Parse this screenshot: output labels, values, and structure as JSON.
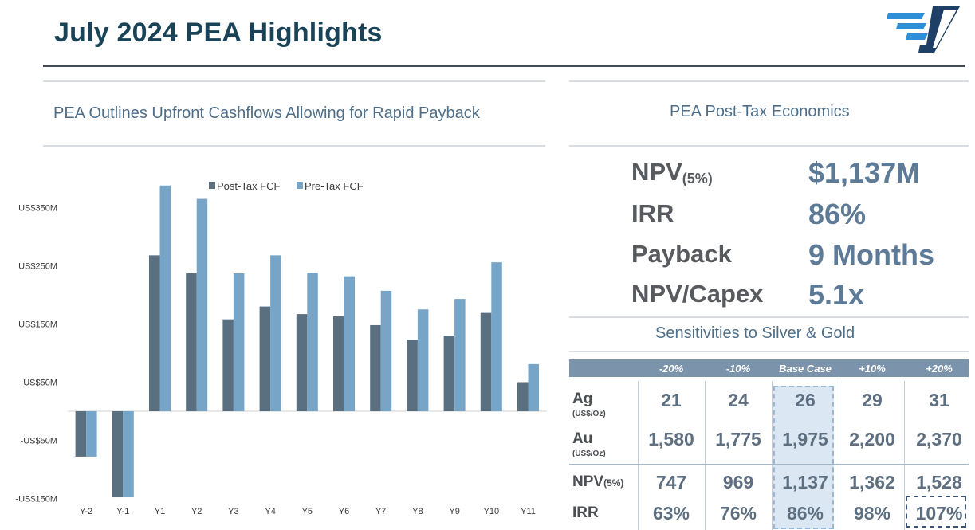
{
  "header": {
    "title": "July 2024 PEA Highlights"
  },
  "left_panel": {
    "heading": "PEA Outlines Upfront Cashflows Allowing for Rapid Payback"
  },
  "chart_data": {
    "type": "bar",
    "categories": [
      "Y-2",
      "Y-1",
      "Y1",
      "Y2",
      "Y3",
      "Y4",
      "Y5",
      "Y6",
      "Y7",
      "Y8",
      "Y9",
      "Y10",
      "Y11"
    ],
    "series": [
      {
        "name": "Post-Tax FCF",
        "color": "#5a7080",
        "values": [
          -78,
          -148,
          268,
          237,
          158,
          180,
          167,
          163,
          148,
          123,
          130,
          169,
          50
        ]
      },
      {
        "name": "Pre-Tax FCF",
        "color": "#76a5c8",
        "values": [
          -78,
          -148,
          388,
          365,
          237,
          268,
          238,
          232,
          207,
          175,
          193,
          256,
          81
        ]
      }
    ],
    "y_ticks": [
      {
        "value": 350,
        "label": "US$350M"
      },
      {
        "value": 250,
        "label": "US$250M"
      },
      {
        "value": 150,
        "label": "US$150M"
      },
      {
        "value": 50,
        "label": "US$50M"
      },
      {
        "value": -50,
        "label": "-US$50M"
      },
      {
        "value": -150,
        "label": "-US$150M"
      }
    ],
    "ylim": [
      -150,
      400
    ],
    "legend_position": "top-center"
  },
  "right_panel": {
    "heading": "PEA Post-Tax Economics",
    "metrics": [
      {
        "label": "NPV",
        "sub": "(5%)",
        "value": "$1,137M"
      },
      {
        "label": "IRR",
        "sub": "",
        "value": "86%"
      },
      {
        "label": "Payback",
        "sub": "",
        "value": "9 Months"
      },
      {
        "label": "NPV/Capex",
        "sub": "",
        "value": "5.1x"
      }
    ]
  },
  "sensitivity": {
    "heading": "Sensitivities to Silver & Gold",
    "columns": [
      "-20%",
      "-10%",
      "Base Case",
      "+10%",
      "+20%"
    ],
    "rows": [
      {
        "label": "Ag",
        "unit": "(US$/Oz)",
        "values": [
          "21",
          "24",
          "26",
          "29",
          "31"
        ]
      },
      {
        "label": "Au",
        "unit": "(US$/Oz)",
        "values": [
          "1,580",
          "1,775",
          "1,975",
          "2,200",
          "2,370"
        ]
      },
      {
        "label": "NPV",
        "sub": "(5%)",
        "values": [
          "747",
          "969",
          "1,137",
          "1,362",
          "1,528"
        ]
      },
      {
        "label": "IRR",
        "values": [
          "63%",
          "76%",
          "86%",
          "98%",
          "107%"
        ]
      }
    ]
  }
}
